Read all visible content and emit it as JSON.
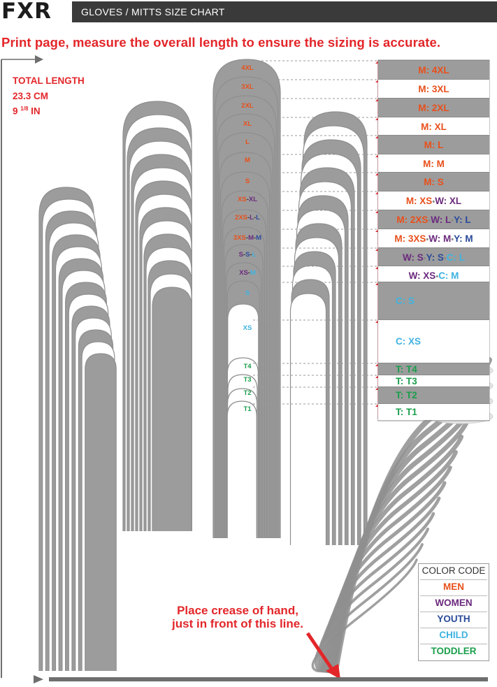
{
  "header": {
    "logo": "FXR",
    "title": "GLOVES / MITTS SIZE CHART"
  },
  "instruction": "Print page, measure the overall length to ensure the sizing is accurate.",
  "total_length": {
    "label": "TOTAL LENGTH",
    "cm": "23.3 CM",
    "in_whole": "9",
    "in_frac": "1/8",
    "in_unit": " IN"
  },
  "finger_labels": [
    [
      {
        "t": "4XL",
        "c": "men"
      }
    ],
    [
      {
        "t": "3XL",
        "c": "men"
      }
    ],
    [
      {
        "t": "2XL",
        "c": "men"
      }
    ],
    [
      {
        "t": "XL",
        "c": "men"
      }
    ],
    [
      {
        "t": "L",
        "c": "men"
      }
    ],
    [
      {
        "t": "M",
        "c": "men"
      }
    ],
    [
      {
        "t": "S",
        "c": "men"
      }
    ],
    [
      {
        "t": "XS",
        "c": "men"
      },
      {
        "t": "-",
        "c": "dark"
      },
      {
        "t": "XL",
        "c": "women"
      }
    ],
    [
      {
        "t": "2XS",
        "c": "men"
      },
      {
        "t": "-",
        "c": "dark"
      },
      {
        "t": "L",
        "c": "women"
      },
      {
        "t": "-",
        "c": "dark"
      },
      {
        "t": "L",
        "c": "youth"
      }
    ],
    [
      {
        "t": "3XS",
        "c": "men"
      },
      {
        "t": "-",
        "c": "dark"
      },
      {
        "t": "M",
        "c": "women"
      },
      {
        "t": "-",
        "c": "dark"
      },
      {
        "t": "M",
        "c": "youth"
      }
    ],
    [
      {
        "t": "S",
        "c": "women"
      },
      {
        "t": "-",
        "c": "dark"
      },
      {
        "t": "S",
        "c": "youth"
      },
      {
        "t": "-",
        "c": "dark"
      },
      {
        "t": "L",
        "c": "child"
      }
    ],
    [
      {
        "t": "XS",
        "c": "women"
      },
      {
        "t": "-",
        "c": "dark"
      },
      {
        "t": "M",
        "c": "child"
      }
    ],
    [
      {
        "t": "S",
        "c": "child"
      }
    ],
    [
      {
        "t": "XS",
        "c": "child"
      }
    ],
    [
      {
        "t": "T4",
        "c": "tod"
      }
    ],
    [
      {
        "t": "T3",
        "c": "tod"
      }
    ],
    [
      {
        "t": "T2",
        "c": "tod"
      }
    ],
    [
      {
        "t": "T1",
        "c": "tod"
      }
    ]
  ],
  "size_rows": [
    [
      {
        "t": "M: 4XL",
        "c": "men"
      }
    ],
    [
      {
        "t": "M: 3XL",
        "c": "men"
      }
    ],
    [
      {
        "t": "M: 2XL",
        "c": "men"
      }
    ],
    [
      {
        "t": "M: XL",
        "c": "men"
      }
    ],
    [
      {
        "t": "M: L",
        "c": "men"
      }
    ],
    [
      {
        "t": "M: M",
        "c": "men"
      }
    ],
    [
      {
        "t": "M: S",
        "c": "men"
      }
    ],
    [
      {
        "t": "M: XS",
        "c": "men"
      },
      {
        "t": " • ",
        "c": "dot"
      },
      {
        "t": "W: XL",
        "c": "women"
      }
    ],
    [
      {
        "t": "M: 2XS",
        "c": "men"
      },
      {
        "t": " • ",
        "c": "dot"
      },
      {
        "t": "W: L",
        "c": "women"
      },
      {
        "t": " • ",
        "c": "dot"
      },
      {
        "t": "Y: L",
        "c": "youth"
      }
    ],
    [
      {
        "t": "M: 3XS",
        "c": "men"
      },
      {
        "t": " • ",
        "c": "dot"
      },
      {
        "t": "W: M",
        "c": "women"
      },
      {
        "t": " • ",
        "c": "dot"
      },
      {
        "t": "Y: M",
        "c": "youth"
      }
    ],
    [
      {
        "t": "W: S",
        "c": "women"
      },
      {
        "t": " • ",
        "c": "dot"
      },
      {
        "t": "Y: S",
        "c": "youth"
      },
      {
        "t": " • ",
        "c": "dot"
      },
      {
        "t": "C: L",
        "c": "child"
      }
    ],
    [
      {
        "t": "W: XS",
        "c": "women"
      },
      {
        "t": " • ",
        "c": "dot"
      },
      {
        "t": "C: M",
        "c": "child"
      }
    ],
    [
      {
        "t": "C: S",
        "c": "child"
      }
    ],
    [
      {
        "t": "C: XS",
        "c": "child"
      }
    ],
    [
      {
        "t": "T: T4",
        "c": "tod"
      }
    ],
    [
      {
        "t": "T: T3",
        "c": "tod"
      }
    ],
    [
      {
        "t": "T: T2",
        "c": "tod"
      }
    ],
    [
      {
        "t": "T: T1",
        "c": "tod"
      }
    ]
  ],
  "color_code": {
    "title": "COLOR CODE",
    "items": [
      {
        "label": "MEN",
        "color": "#e8501b"
      },
      {
        "label": "WOMEN",
        "color": "#6b2a7d"
      },
      {
        "label": "YOUTH",
        "color": "#2a4b9b"
      },
      {
        "label": "CHILD",
        "color": "#3fb3e0"
      },
      {
        "label": "TODDLER",
        "color": "#1a9e4b"
      }
    ]
  },
  "crease_note": {
    "line1": "Place crease of hand,",
    "line2": "just in front of this line."
  },
  "colors": {
    "accent_red": "#e3262a",
    "band_gray": "#9c9c9c",
    "outline_gray": "#8f8f8f"
  }
}
